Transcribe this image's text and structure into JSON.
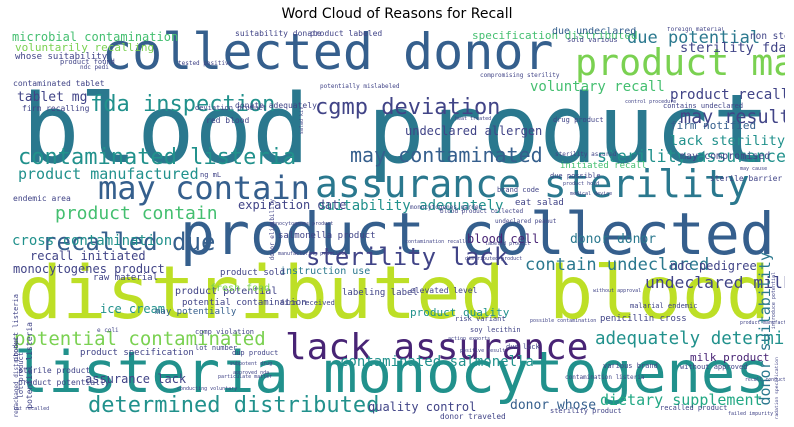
{
  "figure": {
    "title": "Word Cloud of Reasons for Recall"
  },
  "palette": {
    "dark_purple": "#482475",
    "indigo": "#414487",
    "blue": "#355f8d",
    "teal": "#2a788e",
    "green_teal": "#21918c",
    "sea_green": "#22a884",
    "green": "#44bf70",
    "light_green": "#7ad151",
    "yellow_green": "#bddf26"
  },
  "words": [
    {
      "text": "blood product",
      "color": "#2a788e"
    },
    {
      "text": "distributed blood",
      "color": "#bddf26"
    },
    {
      "text": "listeria monocytogenes",
      "color": "#21918c"
    },
    {
      "text": "product collected",
      "color": "#355f8d"
    },
    {
      "text": "collected donor",
      "color": "#355f8d"
    },
    {
      "text": "assurance sterility",
      "color": "#2a788e"
    },
    {
      "text": "lack assurance",
      "color": "#482475"
    },
    {
      "text": "product may",
      "color": "#7ad151"
    },
    {
      "text": "may contain",
      "color": "#355f8d"
    },
    {
      "text": "contaminated listeria",
      "color": "#21918c"
    },
    {
      "text": "cgmp deviation",
      "color": "#414487"
    },
    {
      "text": "sterility lack",
      "color": "#414487"
    },
    {
      "text": "determined distributed",
      "color": "#21918c"
    },
    {
      "text": "recalled due",
      "color": "#355f8d"
    },
    {
      "text": "potential contaminated",
      "color": "#7ad151"
    },
    {
      "text": "adequately determined",
      "color": "#21918c"
    },
    {
      "text": "fda inspection",
      "color": "#21918c"
    },
    {
      "text": "may contaminated",
      "color": "#355f8d"
    },
    {
      "text": "product contain",
      "color": "#44bf70"
    },
    {
      "text": "due potential",
      "color": "#2a788e"
    },
    {
      "text": "may result",
      "color": "#414487"
    },
    {
      "text": "contain undeclared",
      "color": "#2a788e"
    },
    {
      "text": "product manufactured",
      "color": "#21918c"
    },
    {
      "text": "voluntary recall",
      "color": "#44bf70"
    },
    {
      "text": "sterility assurance",
      "color": "#21918c"
    },
    {
      "text": "product recalled",
      "color": "#414487"
    },
    {
      "text": "undeclared milk",
      "color": "#414487"
    },
    {
      "text": "contaminated salmonella",
      "color": "#21918c"
    },
    {
      "text": "dietary supplement",
      "color": "#22a884"
    },
    {
      "text": "suitability adequately",
      "color": "#21918c"
    },
    {
      "text": "cross contamination",
      "color": "#21918c"
    },
    {
      "text": "sterility fda",
      "color": "#414487"
    },
    {
      "text": "lack sterility",
      "color": "#21918c"
    },
    {
      "text": "recall initiated",
      "color": "#414487"
    },
    {
      "text": "monocytogenes product",
      "color": "#414487"
    },
    {
      "text": "donor suitability",
      "color": "#2a788e"
    },
    {
      "text": "expiration date",
      "color": "#414487"
    },
    {
      "text": "tablet mg",
      "color": "#414487"
    },
    {
      "text": "microbial contamination",
      "color": "#44bf70"
    },
    {
      "text": "specification distributed",
      "color": "#44bf70"
    },
    {
      "text": "ndc pedigree",
      "color": "#414487"
    },
    {
      "text": "blood cell",
      "color": "#482475"
    },
    {
      "text": "donor donor",
      "color": "#2a788e"
    },
    {
      "text": "ice cream",
      "color": "#21918c"
    },
    {
      "text": "assurance lack",
      "color": "#414487"
    },
    {
      "text": "quality control",
      "color": "#414487"
    },
    {
      "text": "donor whose",
      "color": "#355f8d"
    },
    {
      "text": "undeclared allergen",
      "color": "#414487"
    },
    {
      "text": "may compromised",
      "color": "#414487"
    },
    {
      "text": "firm notified",
      "color": "#355f8d"
    },
    {
      "text": "product potential",
      "color": "#414487"
    },
    {
      "text": "milk product",
      "color": "#482475"
    },
    {
      "text": "product quality",
      "color": "#21918c"
    },
    {
      "text": "product specification",
      "color": "#414487"
    },
    {
      "text": "may potentially",
      "color": "#355f8d"
    },
    {
      "text": "instruction use",
      "color": "#2a788e"
    },
    {
      "text": "salmonella product",
      "color": "#414487"
    },
    {
      "text": "voluntarily recalling",
      "color": "#7ad151"
    },
    {
      "text": "whose suitability",
      "color": "#414487"
    },
    {
      "text": "raw material",
      "color": "#414487"
    },
    {
      "text": "product sold",
      "color": "#414487"
    },
    {
      "text": "potential contamination",
      "color": "#414487"
    },
    {
      "text": "penicillin cross",
      "color": "#414487"
    },
    {
      "text": "due undeclared",
      "color": "#355f8d"
    },
    {
      "text": "non sterile",
      "color": "#414487"
    },
    {
      "text": "suitability donate",
      "color": "#414487"
    },
    {
      "text": "product labeled",
      "color": "#414487"
    },
    {
      "text": "red blood",
      "color": "#414487"
    },
    {
      "text": "donate adequately",
      "color": "#414487"
    },
    {
      "text": "firm recalling",
      "color": "#414487"
    },
    {
      "text": "eat salad",
      "color": "#414487"
    },
    {
      "text": "initiated recall",
      "color": "#44bf70"
    },
    {
      "text": "sterile barrier",
      "color": "#414487"
    },
    {
      "text": "labeling label",
      "color": "#414487"
    },
    {
      "text": "elevated level",
      "color": "#414487"
    },
    {
      "text": "contaminated tablet",
      "color": "#414487"
    },
    {
      "text": "sterile product",
      "color": "#414487"
    },
    {
      "text": "product potentially",
      "color": "#414487"
    },
    {
      "text": "lot product",
      "color": "#414487"
    },
    {
      "text": "donor traveled",
      "color": "#414487"
    },
    {
      "text": "sterility product",
      "color": "#414487"
    },
    {
      "text": "recalled product",
      "color": "#414487"
    },
    {
      "text": "brand code",
      "color": "#414487"
    },
    {
      "text": "drug product",
      "color": "#414487"
    },
    {
      "text": "due possible",
      "color": "#414487"
    },
    {
      "text": "contains undeclared",
      "color": "#414487"
    },
    {
      "text": "foreign material",
      "color": "#414487"
    },
    {
      "text": "compromising sterility",
      "color": "#414487"
    },
    {
      "text": "contamination listeria",
      "color": "#414487"
    },
    {
      "text": "various brand",
      "color": "#414487"
    },
    {
      "text": "dup product",
      "color": "#414487"
    },
    {
      "text": "due lack",
      "color": "#414487"
    },
    {
      "text": "soy lecithin",
      "color": "#414487"
    },
    {
      "text": "risk variant",
      "color": "#414487"
    },
    {
      "text": "firm received",
      "color": "#414487"
    },
    {
      "text": "fresh food",
      "color": "#7ad151"
    },
    {
      "text": "cgmp violation",
      "color": "#414487"
    },
    {
      "text": "lot number",
      "color": "#414487"
    },
    {
      "text": "without approved",
      "color": "#414487"
    },
    {
      "text": "tested positive",
      "color": "#414487"
    },
    {
      "text": "sold various",
      "color": "#414487"
    },
    {
      "text": "ng mL",
      "color": "#414487"
    },
    {
      "text": "product found",
      "color": "#414487"
    },
    {
      "text": "ndc pedi",
      "color": "#414487"
    },
    {
      "text": "endemic area",
      "color": "#414487"
    },
    {
      "text": "product listeria",
      "color": "#414487"
    },
    {
      "text": "blood product collected",
      "color": "#414487"
    },
    {
      "text": "malarial endemic",
      "color": "#414487"
    },
    {
      "text": "undeclared peanut",
      "color": "#414487"
    },
    {
      "text": "monocytogenes garden",
      "color": "#414487"
    },
    {
      "text": "potential listeria",
      "color": "#414487"
    },
    {
      "text": "deviation product",
      "color": "#414487"
    },
    {
      "text": "donor eligibility",
      "color": "#414487"
    },
    {
      "text": "repackaged distributed",
      "color": "#414487"
    },
    {
      "text": "potentially mislabeled",
      "color": "#414487"
    },
    {
      "text": "sterility assured",
      "color": "#414487"
    },
    {
      "text": "degradation specification",
      "color": "#414487"
    },
    {
      "text": "introduce potential",
      "color": "#414487"
    },
    {
      "text": "e coli",
      "color": "#414487"
    },
    {
      "text": "approved nda",
      "color": "#414487"
    },
    {
      "text": "subpotent drug",
      "color": "#414487"
    },
    {
      "text": "particulate matter",
      "color": "#414487"
    },
    {
      "text": "distributed product",
      "color": "#414487"
    },
    {
      "text": "monocytogenes product",
      "color": "#414487"
    },
    {
      "text": "contamination recalled",
      "color": "#414487"
    },
    {
      "text": "product hold",
      "color": "#414487"
    },
    {
      "text": "medical device",
      "color": "#414487"
    },
    {
      "text": "action exports",
      "color": "#414487"
    },
    {
      "text": "positive result",
      "color": "#414487"
    },
    {
      "text": "control procedure",
      "color": "#414487"
    },
    {
      "text": "manufacturing practice",
      "color": "#414487"
    },
    {
      "text": "salad kit",
      "color": "#414487"
    },
    {
      "text": "may cause",
      "color": "#414487"
    },
    {
      "text": "conducting voluntary",
      "color": "#414487"
    },
    {
      "text": "without approval",
      "color": "#414487"
    },
    {
      "text": "possible contamination",
      "color": "#414487"
    },
    {
      "text": "labeled product",
      "color": "#414487"
    },
    {
      "text": "heat treated",
      "color": "#414487"
    },
    {
      "text": "product manufactured",
      "color": "#414487"
    },
    {
      "text": "failed impurity",
      "color": "#414487"
    },
    {
      "text": "recall conducted",
      "color": "#414487"
    },
    {
      "text": "lot recalled",
      "color": "#414487"
    }
  ]
}
